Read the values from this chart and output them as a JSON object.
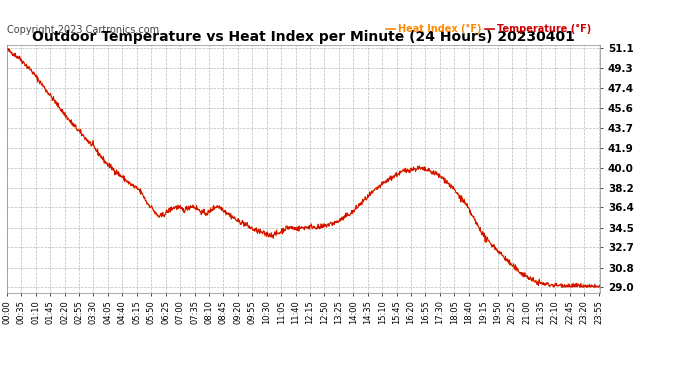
{
  "title": "Outdoor Temperature vs Heat Index per Minute (24 Hours) 20230401",
  "copyright": "Copyright 2023 Cartronics.com",
  "legend_labels": [
    "Heat Index (°F)",
    "Temperature (°F)"
  ],
  "legend_colors": [
    "#ff8800",
    "#cc0000"
  ],
  "ymin": 29.0,
  "ymax": 51.1,
  "yticks": [
    51.1,
    49.3,
    47.4,
    45.6,
    43.7,
    41.9,
    40.0,
    38.2,
    36.4,
    34.5,
    32.7,
    30.8,
    29.0
  ],
  "background_color": "#ffffff",
  "plot_bg_color": "#ffffff",
  "grid_color": "#aaaaaa",
  "line_color": "#cc0000",
  "title_color": "#000000",
  "title_fontsize": 10,
  "copyright_color": "#444444",
  "copyright_fontsize": 7,
  "tick_color": "#000000",
  "xtick_fontsize": 6,
  "ytick_fontsize": 7.5,
  "num_minutes": 1440,
  "tick_interval_minutes": 35,
  "curve_points": [
    [
      0,
      51.0
    ],
    [
      30,
      50.2
    ],
    [
      60,
      49.0
    ],
    [
      90,
      47.5
    ],
    [
      120,
      46.0
    ],
    [
      150,
      44.5
    ],
    [
      180,
      43.2
    ],
    [
      210,
      42.0
    ],
    [
      240,
      40.5
    ],
    [
      270,
      39.5
    ],
    [
      300,
      38.5
    ],
    [
      320,
      38.0
    ],
    [
      330,
      37.5
    ],
    [
      340,
      36.8
    ],
    [
      355,
      36.2
    ],
    [
      360,
      35.8
    ],
    [
      370,
      35.5
    ],
    [
      380,
      35.7
    ],
    [
      390,
      36.0
    ],
    [
      400,
      36.3
    ],
    [
      410,
      36.4
    ],
    [
      420,
      36.3
    ],
    [
      430,
      36.1
    ],
    [
      440,
      36.4
    ],
    [
      450,
      36.5
    ],
    [
      460,
      36.3
    ],
    [
      470,
      36.0
    ],
    [
      480,
      35.8
    ],
    [
      490,
      35.9
    ],
    [
      500,
      36.3
    ],
    [
      510,
      36.5
    ],
    [
      520,
      36.3
    ],
    [
      530,
      36.0
    ],
    [
      540,
      35.7
    ],
    [
      550,
      35.4
    ],
    [
      560,
      35.1
    ],
    [
      570,
      35.0
    ],
    [
      580,
      34.8
    ],
    [
      590,
      34.5
    ],
    [
      600,
      34.3
    ],
    [
      620,
      34.0
    ],
    [
      640,
      33.8
    ],
    [
      660,
      34.0
    ],
    [
      670,
      34.3
    ],
    [
      680,
      34.5
    ],
    [
      690,
      34.5
    ],
    [
      700,
      34.4
    ],
    [
      720,
      34.5
    ],
    [
      740,
      34.6
    ],
    [
      760,
      34.5
    ],
    [
      780,
      34.8
    ],
    [
      800,
      35.0
    ],
    [
      820,
      35.5
    ],
    [
      840,
      36.0
    ],
    [
      860,
      36.8
    ],
    [
      880,
      37.5
    ],
    [
      900,
      38.2
    ],
    [
      920,
      38.8
    ],
    [
      940,
      39.3
    ],
    [
      960,
      39.7
    ],
    [
      980,
      39.9
    ],
    [
      1000,
      40.0
    ],
    [
      1020,
      39.8
    ],
    [
      1040,
      39.5
    ],
    [
      1060,
      39.0
    ],
    [
      1080,
      38.2
    ],
    [
      1100,
      37.3
    ],
    [
      1110,
      36.8
    ],
    [
      1120,
      36.2
    ],
    [
      1130,
      35.5
    ],
    [
      1140,
      34.8
    ],
    [
      1150,
      34.2
    ],
    [
      1160,
      33.5
    ],
    [
      1180,
      32.8
    ],
    [
      1200,
      32.0
    ],
    [
      1220,
      31.2
    ],
    [
      1240,
      30.5
    ],
    [
      1260,
      30.0
    ],
    [
      1280,
      29.5
    ],
    [
      1300,
      29.3
    ],
    [
      1320,
      29.2
    ],
    [
      1380,
      29.1
    ],
    [
      1410,
      29.0
    ],
    [
      1439,
      29.0
    ]
  ]
}
